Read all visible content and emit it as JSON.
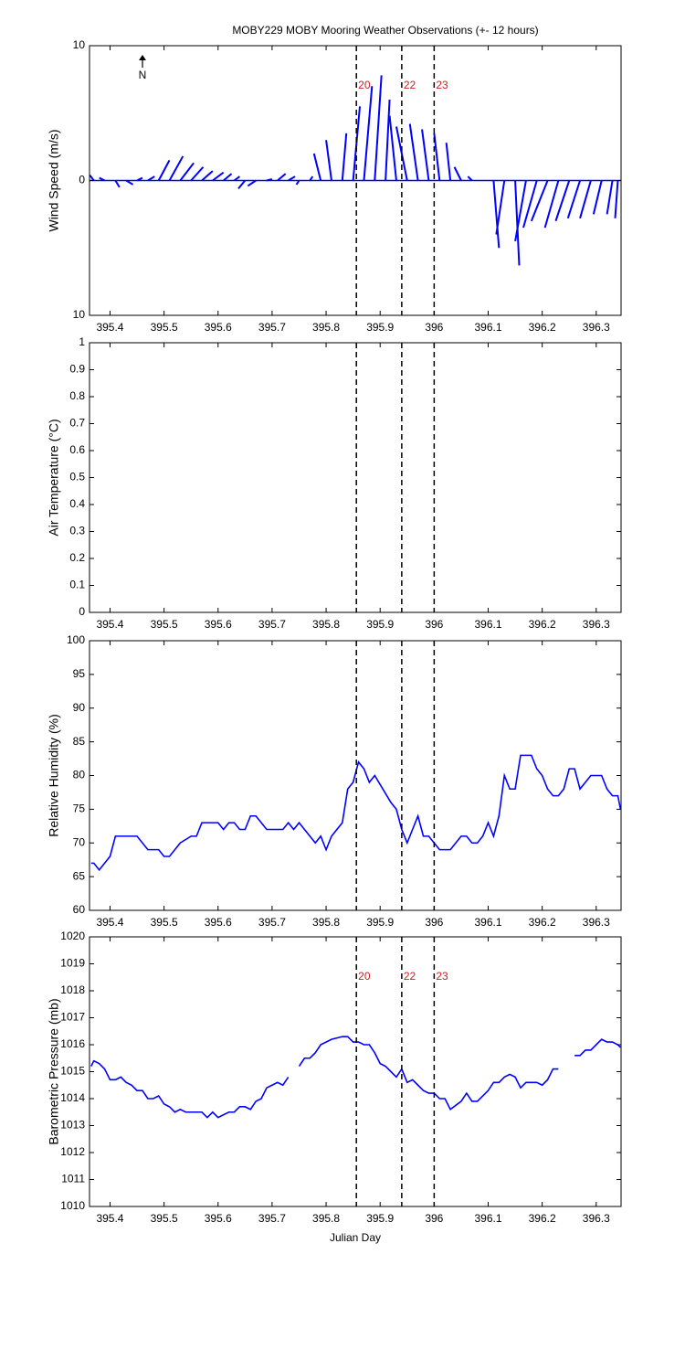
{
  "events": {
    "x": [
      395.856,
      395.94,
      396.0
    ],
    "labels": [
      "20",
      "22",
      "23"
    ],
    "line_color": "#000000",
    "label_color": "#cc2222"
  },
  "chart_data": [
    {
      "type": "stick",
      "title": "MOBY229 MOBY Mooring Weather Observations (+- 12 hours)",
      "ylabel": "Wind Speed (m/s)",
      "north_label": "N",
      "show_event_labels": true,
      "xlim": [
        395.362,
        396.346
      ],
      "xticks": [
        395.4,
        395.5,
        395.6,
        395.7,
        395.8,
        395.9,
        396,
        396.1,
        396.2,
        396.3
      ],
      "ylim": [
        -10,
        10
      ],
      "yticks": [
        {
          "value": -10,
          "label": "10"
        },
        0,
        10
      ],
      "color": "#0000ff",
      "x": [
        395.37,
        395.39,
        395.41,
        395.43,
        395.45,
        395.47,
        395.49,
        395.51,
        395.53,
        395.55,
        395.57,
        395.59,
        395.61,
        395.63,
        395.65,
        395.67,
        395.69,
        395.71,
        395.73,
        395.75,
        395.77,
        395.79,
        395.81,
        395.83,
        395.85,
        395.87,
        395.89,
        395.91,
        395.93,
        395.95,
        395.97,
        395.99,
        396.01,
        396.03,
        396.05,
        396.07,
        396.09,
        396.11,
        396.13,
        396.15,
        396.17,
        396.19,
        396.21,
        396.23,
        396.25,
        396.27,
        396.29,
        396.31,
        396.33,
        396.34
      ],
      "u": [
        -0.3,
        -0.4,
        0.3,
        0.5,
        0.4,
        0.5,
        0.8,
        1.0,
        1.0,
        0.9,
        0.8,
        0.8,
        0.6,
        0.4,
        -0.5,
        -0.6,
        0.4,
        0.6,
        0.5,
        -0.2,
        0.2,
        -0.5,
        -0.4,
        0.3,
        0.5,
        0.6,
        0.5,
        0.3,
        -0.5,
        -0.8,
        -0.6,
        -0.5,
        -0.4,
        -0.3,
        -0.5,
        -0.3,
        0,
        0.4,
        -0.6,
        0.3,
        -0.8,
        -1.0,
        -1.2,
        -1.0,
        -1.0,
        -0.9,
        -0.8,
        -0.6,
        -0.4,
        -0.2
      ],
      "v": [
        0.4,
        0.2,
        -0.5,
        -0.3,
        0.2,
        0.3,
        1.5,
        1.8,
        1.3,
        1.0,
        0.7,
        0.6,
        0.5,
        0.3,
        -0.6,
        -0.4,
        0.1,
        0.5,
        0.3,
        -0.3,
        0.3,
        2.0,
        3.0,
        3.5,
        5.5,
        7.0,
        7.8,
        6.0,
        4.8,
        4.0,
        4.2,
        3.8,
        3.5,
        2.8,
        1.0,
        0.3,
        0,
        -5.0,
        -4.0,
        -6.3,
        -4.5,
        -3.5,
        -3.0,
        -3.5,
        -3.0,
        -2.8,
        -2.8,
        -2.5,
        -2.5,
        -2.8
      ]
    },
    {
      "type": "line",
      "ylabel": "Air Temperature (°C)",
      "show_event_labels": false,
      "xlim": [
        395.362,
        396.346
      ],
      "xticks": [
        395.4,
        395.5,
        395.6,
        395.7,
        395.8,
        395.9,
        396,
        396.1,
        396.2,
        396.3
      ],
      "ylim": [
        0,
        1
      ],
      "yticks": [
        0,
        0.1,
        0.2,
        0.3,
        0.4,
        0.5,
        0.6,
        0.7,
        0.8,
        0.9,
        1
      ],
      "series": []
    },
    {
      "type": "line",
      "ylabel": "Relative Humidity (%)",
      "show_event_labels": false,
      "xlim": [
        395.362,
        396.346
      ],
      "xticks": [
        395.4,
        395.5,
        395.6,
        395.7,
        395.8,
        395.9,
        396,
        396.1,
        396.2,
        396.3
      ],
      "ylim": [
        60,
        100
      ],
      "yticks": [
        60,
        65,
        70,
        75,
        80,
        85,
        90,
        95,
        100
      ],
      "series": [
        {
          "color": "#0000ff",
          "x": [
            395.365,
            395.37,
            395.38,
            395.4,
            395.41,
            395.45,
            395.47,
            395.49,
            395.5,
            395.51,
            395.53,
            395.55,
            395.56,
            395.57,
            395.6,
            395.61,
            395.62,
            395.63,
            395.64,
            395.65,
            395.66,
            395.67,
            395.69,
            395.72,
            395.73,
            395.74,
            395.75,
            395.77,
            395.78,
            395.79,
            395.8,
            395.81,
            395.83,
            395.84,
            395.85,
            395.86,
            395.87,
            395.88,
            395.89,
            395.92,
            395.93,
            395.94,
            395.95,
            395.96,
            395.97,
            395.98,
            395.99,
            396.0,
            396.01,
            396.02,
            396.03,
            396.05,
            396.06,
            396.07,
            396.08,
            396.09,
            396.1,
            396.11,
            396.12,
            396.13,
            396.14,
            396.15,
            396.16,
            396.18,
            396.19,
            396.2,
            396.21,
            396.22,
            396.23,
            396.24,
            396.25,
            396.26,
            396.27,
            396.28,
            396.29,
            396.31,
            396.32,
            396.33,
            396.34,
            396.345
          ],
          "values": [
            67,
            67,
            66,
            68,
            71,
            71,
            69,
            69,
            68,
            68,
            70,
            71,
            71,
            73,
            73,
            72,
            73,
            73,
            72,
            72,
            74,
            74,
            72,
            72,
            73,
            72,
            73,
            71,
            70,
            71,
            69,
            71,
            73,
            78,
            79,
            82,
            81,
            79,
            80,
            76,
            75,
            72,
            70,
            72,
            74,
            71,
            71,
            70,
            69,
            69,
            69,
            71,
            71,
            70,
            70,
            71,
            73,
            71,
            74,
            80,
            78,
            78,
            83,
            83,
            81,
            80,
            78,
            77,
            77,
            78,
            81,
            81,
            78,
            79,
            80,
            80,
            78,
            77,
            77,
            75
          ]
        }
      ]
    },
    {
      "type": "line",
      "ylabel": "Barometric Pressure (mb)",
      "xlabel": "Julian Day",
      "show_event_labels": true,
      "xlim": [
        395.362,
        396.346
      ],
      "xticks": [
        395.4,
        395.5,
        395.6,
        395.7,
        395.8,
        395.9,
        396,
        396.1,
        396.2,
        396.3
      ],
      "ylim": [
        1010,
        1020
      ],
      "yticks": [
        1010,
        1011,
        1012,
        1013,
        1014,
        1015,
        1016,
        1017,
        1018,
        1019,
        1020
      ],
      "series": [
        {
          "color": "#0000ff",
          "x": [
            395.365,
            395.37,
            395.38,
            395.39,
            395.4,
            395.41,
            395.42,
            395.43,
            395.44,
            395.45,
            395.46,
            395.47,
            395.48,
            395.49,
            395.5,
            395.51,
            395.52,
            395.53,
            395.54,
            395.57,
            395.58,
            395.59,
            395.6,
            395.61,
            395.62,
            395.63,
            395.64,
            395.65,
            395.66,
            395.67,
            395.68,
            395.69,
            395.7,
            395.71,
            395.72,
            395.73,
            395.74,
            395.75,
            395.76,
            395.77,
            395.78,
            395.79,
            395.81,
            395.83,
            395.84,
            395.85,
            395.86,
            395.87,
            395.88,
            395.89,
            395.9,
            395.91,
            395.92,
            395.93,
            395.94,
            395.95,
            395.96,
            395.97,
            395.98,
            395.99,
            396.0,
            396.01,
            396.02,
            396.03,
            396.05,
            396.06,
            396.07,
            396.08,
            396.09,
            396.1,
            396.11,
            396.12,
            396.13,
            396.14,
            396.15,
            396.16,
            396.17,
            396.19,
            396.2,
            396.21,
            396.22,
            396.23,
            396.245,
            396.26,
            396.27,
            396.28,
            396.29,
            396.3,
            396.31,
            396.32,
            396.33,
            396.34,
            396.345
          ],
          "values": [
            1015.2,
            1015.4,
            1015.3,
            1015.1,
            1014.7,
            1014.7,
            1014.8,
            1014.6,
            1014.5,
            1014.3,
            1014.3,
            1014.0,
            1014.0,
            1014.1,
            1013.8,
            1013.7,
            1013.5,
            1013.6,
            1013.5,
            1013.5,
            1013.3,
            1013.5,
            1013.3,
            1013.4,
            1013.5,
            1013.5,
            1013.7,
            1013.7,
            1013.6,
            1013.9,
            1014.0,
            1014.4,
            1014.5,
            1014.6,
            1014.5,
            1014.8,
            null,
            1015.2,
            1015.5,
            1015.5,
            1015.7,
            1016.0,
            1016.2,
            1016.3,
            1016.3,
            1016.1,
            1016.1,
            1016.0,
            1016.0,
            1015.7,
            1015.3,
            1015.2,
            1015.0,
            1014.8,
            1015.1,
            1014.6,
            1014.7,
            1014.5,
            1014.3,
            1014.2,
            1014.2,
            1014.0,
            1014.0,
            1013.6,
            1013.9,
            1014.2,
            1013.9,
            1013.9,
            1014.1,
            1014.3,
            1014.6,
            1014.6,
            1014.8,
            1014.9,
            1014.8,
            1014.4,
            1014.6,
            1014.6,
            1014.5,
            1014.7,
            1015.1,
            1015.1,
            null,
            1015.6,
            1015.6,
            1015.8,
            1015.8,
            1016.0,
            1016.2,
            1016.1,
            1016.1,
            1016.0,
            1015.9
          ]
        }
      ]
    }
  ]
}
